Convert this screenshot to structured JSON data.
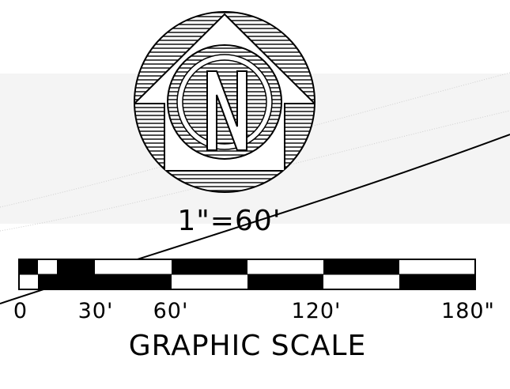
{
  "colors": {
    "ink": "#000000",
    "paper": "#ffffff",
    "band": "#f4f4f4",
    "faint_line": "#d0d0d0"
  },
  "north_arrow": {
    "letter": "N",
    "icon": "north-arrow-icon"
  },
  "scale_ratio": "1\"=60'",
  "scale_bar": {
    "labels": [
      "0",
      "30'",
      "60'",
      "120'",
      "180\""
    ],
    "title": "GRAPHIC SCALE"
  }
}
